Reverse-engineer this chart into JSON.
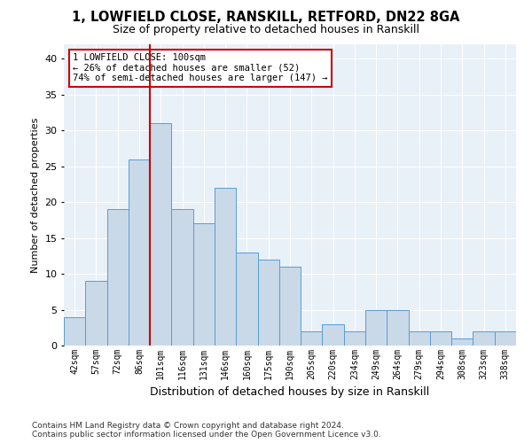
{
  "title1": "1, LOWFIELD CLOSE, RANSKILL, RETFORD, DN22 8GA",
  "title2": "Size of property relative to detached houses in Ranskill",
  "xlabel": "Distribution of detached houses by size in Ranskill",
  "ylabel": "Number of detached properties",
  "categories": [
    "42sqm",
    "57sqm",
    "72sqm",
    "86sqm",
    "101sqm",
    "116sqm",
    "131sqm",
    "146sqm",
    "160sqm",
    "175sqm",
    "190sqm",
    "205sqm",
    "220sqm",
    "234sqm",
    "249sqm",
    "264sqm",
    "279sqm",
    "294sqm",
    "308sqm",
    "323sqm",
    "338sqm"
  ],
  "values": [
    4,
    9,
    19,
    26,
    31,
    19,
    17,
    22,
    13,
    12,
    11,
    2,
    3,
    2,
    5,
    5,
    2,
    2,
    1,
    2,
    2
  ],
  "bar_color": "#c9d9e8",
  "bar_edge_color": "#5b9bd5",
  "background_color": "#e8f0f8",
  "vline_color": "#cc0000",
  "annotation_title": "1 LOWFIELD CLOSE: 100sqm",
  "annotation_line1": "← 26% of detached houses are smaller (52)",
  "annotation_line2": "74% of semi-detached houses are larger (147) →",
  "annotation_box_color": "#ffffff",
  "annotation_box_edge": "#cc0000",
  "ylim": [
    0,
    42
  ],
  "yticks": [
    0,
    5,
    10,
    15,
    20,
    25,
    30,
    35,
    40
  ],
  "footnote1": "Contains HM Land Registry data © Crown copyright and database right 2024.",
  "footnote2": "Contains public sector information licensed under the Open Government Licence v3.0."
}
